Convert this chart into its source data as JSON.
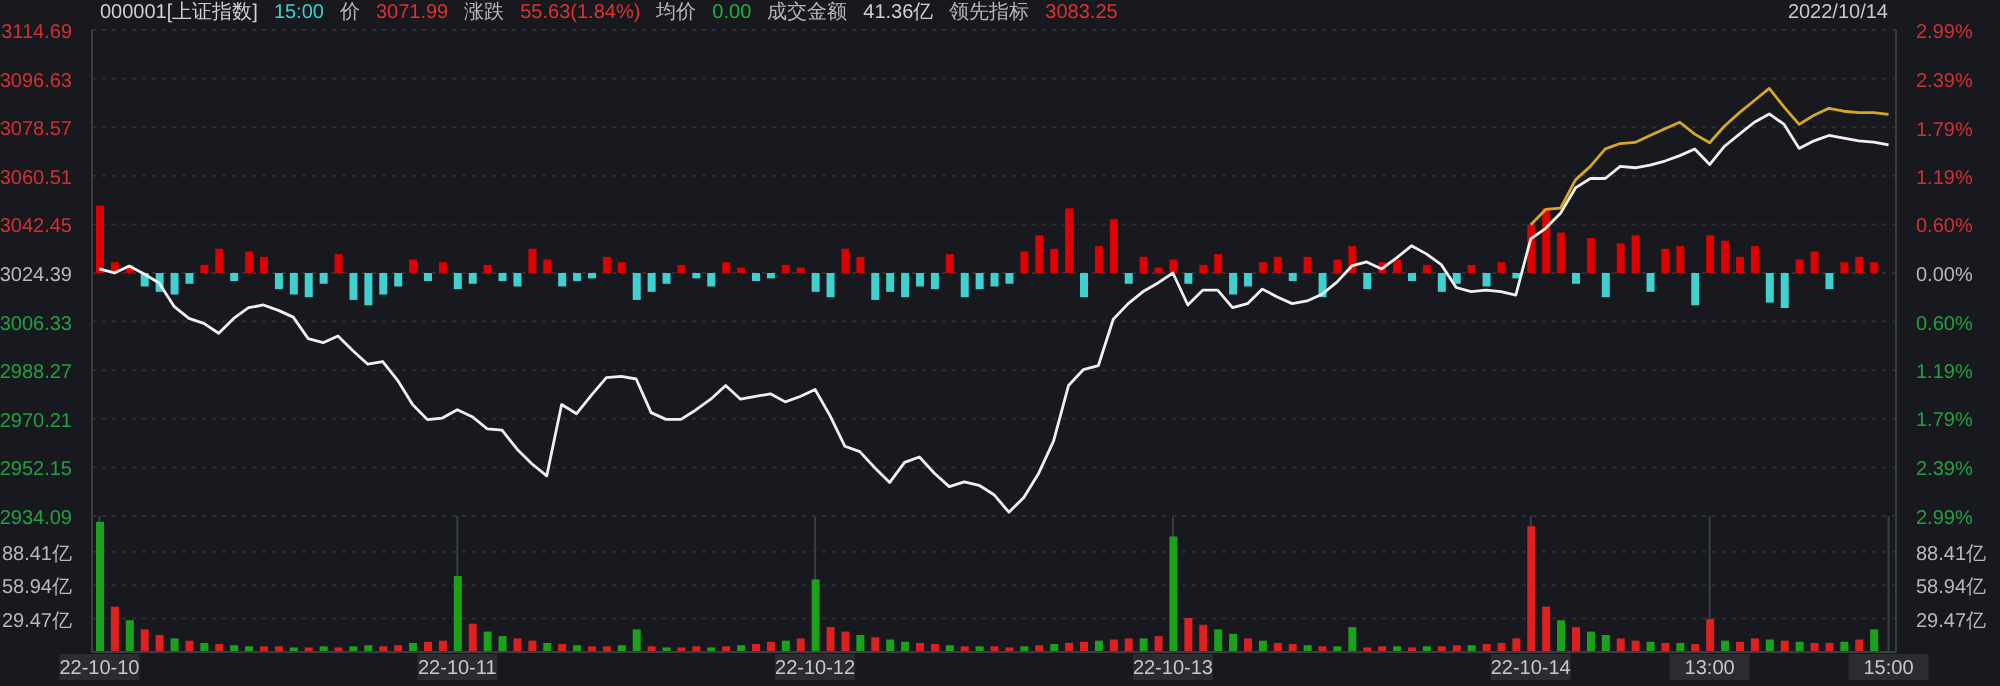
{
  "chart_data": [
    {
      "type": "line",
      "title": "000001[上证指数]",
      "subtitle": "2022/10/14",
      "annotations": [
        "15:00",
        "价",
        "3071.99",
        "涨跌",
        "55.63(1.84%)",
        "均价",
        "0.00",
        "成交金额",
        "41.36亿",
        "领先指标",
        "3083.25"
      ],
      "categories": [
        null,
        null,
        null,
        null,
        null,
        null,
        null,
        null,
        null,
        null,
        null,
        null,
        null,
        null,
        null,
        null,
        null,
        null,
        null,
        null,
        null,
        null,
        null,
        null,
        null,
        null,
        null,
        null,
        null,
        null,
        null,
        null,
        null,
        null,
        null,
        null,
        null,
        null,
        null,
        null,
        null,
        null,
        null,
        null,
        null,
        null,
        null,
        null,
        null,
        null,
        null,
        null,
        null,
        null,
        null,
        null,
        null,
        null,
        null,
        null,
        null,
        null,
        null,
        null,
        null,
        null,
        null,
        null,
        null,
        null,
        null,
        null,
        null,
        null,
        null,
        null,
        null,
        null,
        null,
        null,
        null,
        null,
        null,
        null,
        null,
        null,
        null,
        null,
        null,
        null,
        null,
        null,
        null,
        null,
        null,
        null,
        null,
        null,
        null,
        null,
        null,
        null,
        null,
        null,
        null,
        null,
        null,
        null,
        null,
        null,
        null,
        null,
        null,
        null,
        null,
        null,
        null,
        null,
        null,
        null,
        null
      ],
      "ylim": [
        2934.09,
        3114.69
      ],
      "yticks": [
        2934.09,
        2952.15,
        2970.21,
        2988.27,
        3006.33,
        3024.39,
        3042.45,
        3060.51,
        3078.57,
        3096.63,
        3114.69
      ],
      "y2lim": [
        -2.99,
        2.99
      ],
      "y2ticks": [
        {
          "value": -2.99,
          "label": "2.99%"
        },
        {
          "value": -2.39,
          "label": "2.39%"
        },
        {
          "value": -1.79,
          "label": "1.79%"
        },
        {
          "value": -1.19,
          "label": "1.19%"
        },
        {
          "value": -0.6,
          "label": "0.60%"
        },
        {
          "value": 0,
          "label": "0.00%"
        },
        {
          "value": 0.6,
          "label": "0.60%"
        },
        {
          "value": 1.19,
          "label": "1.19%"
        },
        {
          "value": 1.79,
          "label": "1.79%"
        },
        {
          "value": 2.39,
          "label": "2.39%"
        },
        {
          "value": 2.99,
          "label": "2.99%"
        }
      ],
      "grid": true,
      "tick_labels": "y",
      "series": [
        {
          "type": "bar",
          "values": [
            25,
            4,
            3,
            -5,
            -7,
            -8,
            -4,
            3,
            9,
            -3,
            8,
            6,
            -6,
            -8,
            -9,
            -4,
            7,
            -10,
            -12,
            -8,
            -5,
            5,
            -3,
            4,
            -6,
            -4,
            3,
            -3,
            -5,
            9,
            5,
            -5,
            -3,
            -2,
            6,
            4,
            -10,
            -7,
            -4,
            3,
            -2,
            -5,
            4,
            2,
            -3,
            -2,
            3,
            2,
            -7,
            -9,
            9,
            6,
            -10,
            -7,
            -9,
            -5,
            -6,
            7,
            -9,
            -6,
            -5,
            -4,
            8,
            14,
            9,
            24,
            -9,
            10,
            20,
            -4,
            6,
            2,
            5,
            -4,
            3,
            7,
            -8,
            -5,
            4,
            6,
            -3,
            6,
            -9,
            5,
            10,
            -6,
            4,
            5,
            -3,
            3,
            -7,
            -4,
            3,
            -5,
            4,
            -2,
            18,
            24,
            15,
            -4,
            13,
            -9,
            11,
            14,
            -7,
            9,
            10,
            -12,
            14,
            12,
            6,
            10,
            -11,
            -13,
            5,
            8,
            -6,
            4,
            6,
            4,
            null
          ],
          "base": [
            3024.39,
            3024.39,
            3024.39,
            3024.39,
            3024.39,
            3024.39,
            3024.39,
            3024.39,
            3024.39,
            3024.39,
            3024.39,
            3024.39,
            3024.39,
            3024.39,
            3024.39,
            3024.39,
            3024.39,
            3024.39,
            3024.39,
            3024.39,
            3024.39,
            3024.39,
            3024.39,
            3024.39,
            3024.39,
            3024.39,
            3024.39,
            3024.39,
            3024.39,
            3024.39,
            3024.39,
            3024.39,
            3024.39,
            3024.39,
            3024.39,
            3024.39,
            3024.39,
            3024.39,
            3024.39,
            3024.39,
            3024.39,
            3024.39,
            3024.39,
            3024.39,
            3024.39,
            3024.39,
            3024.39,
            3024.39,
            3024.39,
            3024.39,
            3024.39,
            3024.39,
            3024.39,
            3024.39,
            3024.39,
            3024.39,
            3024.39,
            3024.39,
            3024.39,
            3024.39,
            3024.39,
            3024.39,
            3024.39,
            3024.39,
            3024.39,
            3024.39,
            3024.39,
            3024.39,
            3024.39,
            3024.39,
            3024.39,
            3024.39,
            3024.39,
            3024.39,
            3024.39,
            3024.39,
            3024.39,
            3024.39,
            3024.39,
            3024.39,
            3024.39,
            3024.39,
            3024.39,
            3024.39,
            3024.39,
            3024.39,
            3024.39,
            3024.39,
            3024.39,
            3024.39,
            3024.39,
            3024.39,
            3024.39,
            3024.39,
            3024.39,
            3024.39,
            3024.39,
            3024.39,
            3024.39,
            3024.39,
            3024.39,
            3024.39,
            3024.39,
            3024.39,
            3024.39,
            3024.39,
            3024.39,
            3024.39,
            3024.39,
            3024.39,
            3024.39,
            3024.39,
            3024.39,
            3024.39,
            3024.39,
            3024.39,
            3024.39,
            3024.39,
            3024.39,
            3024.39,
            null
          ],
          "colors": [
            "#e00000",
            "#e00000",
            "#e00000",
            "#40d0d0",
            "#40d0d0",
            "#40d0d0",
            "#40d0d0",
            "#e00000",
            "#e00000",
            "#40d0d0",
            "#e00000",
            "#e00000",
            "#40d0d0",
            "#40d0d0",
            "#40d0d0",
            "#40d0d0",
            "#e00000",
            "#40d0d0",
            "#40d0d0",
            "#40d0d0",
            "#40d0d0",
            "#e00000",
            "#40d0d0",
            "#e00000",
            "#40d0d0",
            "#40d0d0",
            "#e00000",
            "#40d0d0",
            "#40d0d0",
            "#e00000",
            "#e00000",
            "#40d0d0",
            "#40d0d0",
            "#40d0d0",
            "#e00000",
            "#e00000",
            "#40d0d0",
            "#40d0d0",
            "#40d0d0",
            "#e00000",
            "#40d0d0",
            "#40d0d0",
            "#e00000",
            "#e00000",
            "#40d0d0",
            "#40d0d0",
            "#e00000",
            "#e00000",
            "#40d0d0",
            "#40d0d0",
            "#e00000",
            "#e00000",
            "#40d0d0",
            "#40d0d0",
            "#40d0d0",
            "#40d0d0",
            "#40d0d0",
            "#e00000",
            "#40d0d0",
            "#40d0d0",
            "#40d0d0",
            "#40d0d0",
            "#e00000",
            "#e00000",
            "#e00000",
            "#e00000",
            "#40d0d0",
            "#e00000",
            "#e00000",
            "#40d0d0",
            "#e00000",
            "#e00000",
            "#e00000",
            "#40d0d0",
            "#e00000",
            "#e00000",
            "#40d0d0",
            "#40d0d0",
            "#e00000",
            "#e00000",
            "#40d0d0",
            "#e00000",
            "#40d0d0",
            "#e00000",
            "#e00000",
            "#40d0d0",
            "#e00000",
            "#e00000",
            "#40d0d0",
            "#e00000",
            "#40d0d0",
            "#40d0d0",
            "#e00000",
            "#40d0d0",
            "#e00000",
            "#40d0d0",
            "#e00000",
            "#e00000",
            "#e00000",
            "#40d0d0",
            "#e00000",
            "#40d0d0",
            "#e00000",
            "#e00000",
            "#40d0d0",
            "#e00000",
            "#e00000",
            "#40d0d0",
            "#e00000",
            "#e00000",
            "#e00000",
            "#e00000",
            "#40d0d0",
            "#40d0d0",
            "#e00000",
            "#e00000",
            "#40d0d0",
            "#e00000",
            "#e00000",
            "#e00000",
            null
          ]
        },
        {
          "type": "line",
          "color": "#f0f0f0",
          "values": [
            3025.9,
            3024.4,
            3027.0,
            3024.0,
            3020.7,
            3012.0,
            3007.5,
            3005.7,
            3002.0,
            3007.5,
            3011.5,
            3012.5,
            3010.5,
            3008.0,
            3000.0,
            2998.5,
            3001.0,
            2995.5,
            2990.5,
            2991.5,
            2984.5,
            2975.5,
            2969.9,
            2970.5,
            2973.6,
            2971.0,
            2966.5,
            2966.0,
            2959.0,
            2953.5,
            2949.0,
            2975.5,
            2972.1,
            2979.0,
            2985.5,
            2986.0,
            2985.0,
            2972.5,
            2970.0,
            2970.0,
            2973.5,
            2977.5,
            2982.6,
            2977.5,
            2978.5,
            2979.5,
            2976.5,
            2978.5,
            2981.1,
            2971.4,
            2960.0,
            2958.0,
            2952.0,
            2946.5,
            2954.0,
            2956.0,
            2950.0,
            2945.0,
            2946.8,
            2945.5,
            2942.0,
            2935.5,
            2941.0,
            2950.0,
            2962.0,
            2982.6,
            2988.5,
            2990.0,
            3007.2,
            3013.0,
            3017.5,
            3020.7,
            3024.4,
            3012.5,
            3018.0,
            3018.0,
            3011.5,
            3013.0,
            3018.4,
            3015.5,
            3013.0,
            3014.0,
            3016.5,
            3021.0,
            3027.0,
            3028.5,
            3025.9,
            3030.0,
            3034.5,
            3031.5,
            3027.5,
            3019.0,
            3017.5,
            3018.0,
            3017.5,
            3016.2,
            3037.1,
            3041.0,
            3046.6,
            3056.0,
            3059.5,
            3059.5,
            3064.0,
            3063.5,
            3064.5,
            3066.0,
            3068.0,
            3070.5,
            3064.7,
            3071.5,
            3076.0,
            3080.4,
            3083.5,
            3079.6,
            3070.7,
            3073.5,
            3075.5,
            3074.5,
            3073.5,
            3073.0,
            3072.0
          ]
        },
        {
          "type": "line",
          "color": "#d4a826",
          "values": [
            null,
            null,
            null,
            null,
            null,
            null,
            null,
            null,
            null,
            null,
            null,
            null,
            null,
            null,
            null,
            null,
            null,
            null,
            null,
            null,
            null,
            null,
            null,
            null,
            null,
            null,
            null,
            null,
            null,
            null,
            null,
            null,
            null,
            null,
            null,
            null,
            null,
            null,
            null,
            null,
            null,
            null,
            null,
            null,
            null,
            null,
            null,
            null,
            null,
            null,
            null,
            null,
            null,
            null,
            null,
            null,
            null,
            null,
            null,
            null,
            null,
            null,
            null,
            null,
            null,
            null,
            null,
            null,
            null,
            null,
            null,
            null,
            null,
            null,
            null,
            null,
            null,
            null,
            null,
            null,
            null,
            null,
            null,
            null,
            null,
            null,
            null,
            null,
            null,
            null,
            null,
            null,
            null,
            null,
            null,
            null,
            3042.3,
            3048.0,
            3048.5,
            3059.0,
            3064.0,
            3070.5,
            3072.5,
            3072.9,
            3075.5,
            3078.0,
            3080.4,
            3076.0,
            3072.8,
            3079.0,
            3084.0,
            3088.5,
            3093.0,
            3086.0,
            3079.6,
            3083.0,
            3085.6,
            3084.5,
            3084.0,
            3084.0,
            3083.3
          ]
        }
      ]
    },
    {
      "type": "bar",
      "categories": [
        "22-10-10",
        null,
        null,
        null,
        null,
        null,
        null,
        null,
        null,
        null,
        null,
        null,
        null,
        null,
        null,
        null,
        null,
        null,
        null,
        null,
        null,
        null,
        null,
        null,
        "22-10-11",
        null,
        null,
        null,
        null,
        null,
        null,
        null,
        null,
        null,
        null,
        null,
        null,
        null,
        null,
        null,
        null,
        null,
        null,
        null,
        null,
        null,
        null,
        null,
        "22-10-12",
        null,
        null,
        null,
        null,
        null,
        null,
        null,
        null,
        null,
        null,
        null,
        null,
        null,
        null,
        null,
        null,
        null,
        null,
        null,
        null,
        null,
        null,
        null,
        "22-10-13",
        null,
        null,
        null,
        null,
        null,
        null,
        null,
        null,
        null,
        null,
        null,
        null,
        null,
        null,
        null,
        null,
        null,
        null,
        null,
        null,
        null,
        null,
        null,
        "22-10-14",
        null,
        null,
        null,
        null,
        null,
        null,
        null,
        null,
        null,
        null,
        null,
        "13:00",
        null,
        null,
        null,
        null,
        null,
        null,
        null,
        null,
        null,
        null,
        null,
        "15:00"
      ],
      "ylim": [
        0,
        120
      ],
      "yticks": [
        {
          "value": 29.47,
          "label": "29.47亿"
        },
        {
          "value": 58.94,
          "label": "58.94亿"
        },
        {
          "value": 88.41,
          "label": "88.41亿"
        }
      ],
      "y2lim": [
        0,
        120
      ],
      "y2ticks": [
        {
          "value": 29.47,
          "label": "29.47亿"
        },
        {
          "value": 58.94,
          "label": "58.94亿"
        },
        {
          "value": 88.41,
          "label": "88.41亿"
        }
      ],
      "grid": true,
      "series": [
        {
          "values": [
            115,
            40,
            28,
            20,
            15,
            12,
            10,
            8,
            7,
            6,
            5,
            5,
            5,
            4,
            4,
            5,
            4,
            5,
            6,
            5,
            6,
            8,
            9,
            10,
            67,
            25,
            18,
            14,
            12,
            10,
            8,
            7,
            6,
            5,
            5,
            6,
            20,
            5,
            4,
            4,
            5,
            4,
            5,
            6,
            7,
            9,
            10,
            12,
            64,
            22,
            18,
            15,
            13,
            11,
            9,
            8,
            7,
            6,
            5,
            5,
            5,
            4,
            5,
            6,
            7,
            8,
            9,
            10,
            11,
            12,
            12,
            14,
            102,
            30,
            24,
            20,
            16,
            12,
            10,
            8,
            7,
            6,
            5,
            5,
            22,
            4,
            5,
            5,
            4,
            5,
            5,
            6,
            6,
            7,
            8,
            12,
            111,
            40,
            28,
            22,
            18,
            15,
            12,
            10,
            9,
            8,
            8,
            7,
            29,
            10,
            9,
            12,
            11,
            10,
            9,
            8,
            8,
            9,
            11,
            20,
            null
          ],
          "colors": [
            "#1aa31a",
            "#e02020",
            "#1aa31a",
            "#e02020",
            "#e02020",
            "#1aa31a",
            "#e02020",
            "#1aa31a",
            "#e02020",
            "#1aa31a",
            "#1aa31a",
            "#e02020",
            "#e02020",
            "#1aa31a",
            "#e02020",
            "#1aa31a",
            "#e02020",
            "#1aa31a",
            "#1aa31a",
            "#e02020",
            "#e02020",
            "#1aa31a",
            "#e02020",
            "#e02020",
            "#1aa31a",
            "#e02020",
            "#1aa31a",
            "#1aa31a",
            "#e02020",
            "#e02020",
            "#1aa31a",
            "#e02020",
            "#1aa31a",
            "#e02020",
            "#e02020",
            "#1aa31a",
            "#1aa31a",
            "#e02020",
            "#1aa31a",
            "#e02020",
            "#e02020",
            "#1aa31a",
            "#e02020",
            "#1aa31a",
            "#e02020",
            "#e02020",
            "#1aa31a",
            "#e02020",
            "#1aa31a",
            "#e02020",
            "#e02020",
            "#1aa31a",
            "#e02020",
            "#1aa31a",
            "#1aa31a",
            "#e02020",
            "#e02020",
            "#1aa31a",
            "#e02020",
            "#1aa31a",
            "#e02020",
            "#e02020",
            "#1aa31a",
            "#e02020",
            "#1aa31a",
            "#e02020",
            "#e02020",
            "#1aa31a",
            "#e02020",
            "#e02020",
            "#1aa31a",
            "#e02020",
            "#1aa31a",
            "#e02020",
            "#e02020",
            "#1aa31a",
            "#1aa31a",
            "#e02020",
            "#1aa31a",
            "#e02020",
            "#e02020",
            "#1aa31a",
            "#e02020",
            "#1aa31a",
            "#1aa31a",
            "#e02020",
            "#e02020",
            "#1aa31a",
            "#e02020",
            "#1aa31a",
            "#e02020",
            "#e02020",
            "#1aa31a",
            "#e02020",
            "#e02020",
            "#e02020",
            "#e02020",
            "#e02020",
            "#1aa31a",
            "#e02020",
            "#1aa31a",
            "#1aa31a",
            "#e02020",
            "#e02020",
            "#1aa31a",
            "#e02020",
            "#1aa31a",
            "#e02020",
            "#e02020",
            "#1aa31a",
            "#e02020",
            "#e02020",
            "#1aa31a",
            "#e02020",
            "#1aa31a",
            "#e02020",
            "#e02020",
            "#1aa31a",
            "#e02020",
            "#1aa31a",
            null
          ]
        }
      ]
    }
  ]
}
